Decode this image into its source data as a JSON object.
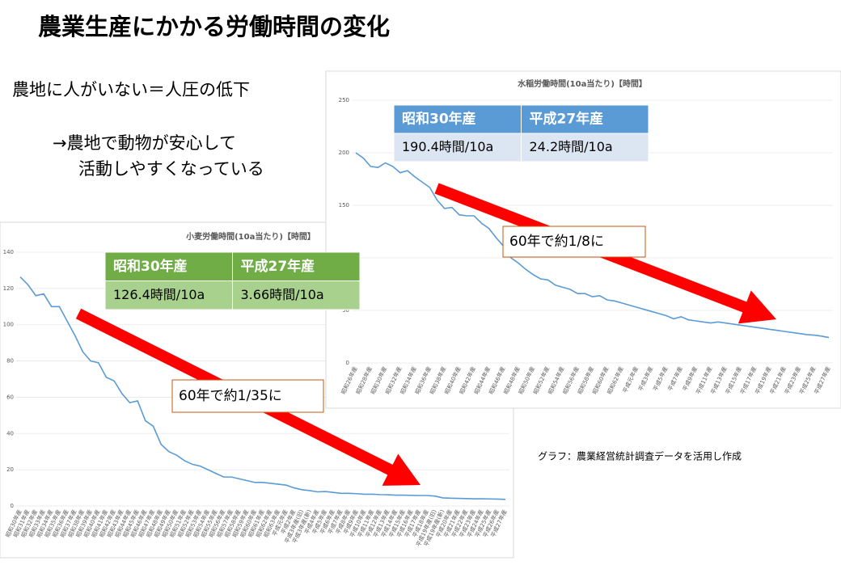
{
  "title": "農業生産にかかる労働時間の変化",
  "text_lines": [
    "農地に人がいない＝人圧の低下",
    "→農地で動物が安心して",
    "活動しやすくなっている"
  ],
  "note": "グラフ：農業経営統計調査データを活用し作成",
  "chart_data": [
    {
      "type": "line",
      "title": "小麦労働時間(10a当たり)【時間】",
      "color": "#5b9bd5",
      "grid": true,
      "ylim": [
        0,
        140
      ],
      "yticks": [
        0,
        20,
        40,
        60,
        80,
        100,
        120,
        140
      ],
      "categories": [
        "昭和30年産",
        "昭和31年産",
        "昭和32年産",
        "昭和33年産",
        "昭和34年産",
        "昭和35年産",
        "昭和36年産",
        "昭和37年産",
        "昭和38年産",
        "昭和39年産",
        "昭和40年産",
        "昭和41年産",
        "昭和42年産",
        "昭和43年産",
        "昭和44年産",
        "昭和45年産",
        "昭和46年産",
        "昭和47年産",
        "昭和48年産",
        "昭和49年産",
        "昭和50年産",
        "昭和51年産",
        "昭和52年産",
        "昭和53年産",
        "昭和54年産",
        "昭和55年産",
        "昭和56年産",
        "昭和57年産",
        "昭和58年産",
        "昭和59年産",
        "昭和60年産",
        "昭和61年産",
        "昭和62年産",
        "昭和63年産",
        "平成元年産",
        "平成2年産",
        "平成3年産(旧)",
        "平成3年産(新)",
        "平成4年産",
        "平成5年産",
        "平成6年産",
        "平成7年産",
        "平成8年産",
        "平成9年産",
        "平成10年産",
        "平成11年産",
        "平成12年産",
        "平成13年産",
        "平成14年産",
        "平成15年産",
        "平成16年産",
        "平成17年産",
        "平成18年産",
        "平成19年産(旧)",
        "平成19年産(新)",
        "平成20年産",
        "平成21年産",
        "平成22年産",
        "平成23年産",
        "平成24年産",
        "平成25年産",
        "平成26年産",
        "平成27年産"
      ],
      "values": [
        126.4,
        122,
        116,
        117,
        110,
        110,
        102,
        94,
        85,
        80,
        79,
        71,
        69,
        62,
        57,
        58,
        47,
        44,
        34,
        30,
        28,
        25,
        23,
        22,
        20,
        18,
        16,
        16,
        15,
        14,
        13,
        13,
        12.5,
        12,
        11.5,
        10,
        9,
        8.5,
        7.8,
        8,
        7.5,
        7,
        7,
        6.8,
        6.5,
        6.5,
        6.3,
        6.2,
        6,
        6,
        5.9,
        5.8,
        5.8,
        5.5,
        4.5,
        4.3,
        4.2,
        4.1,
        4,
        4,
        3.9,
        3.8,
        3.66
      ],
      "table": {
        "header": [
          "昭和30年産",
          "平成27年産"
        ],
        "row": [
          "126.4時間/10a",
          "3.66時間/10a"
        ]
      },
      "annotation": "60年で約1/35に"
    },
    {
      "type": "line",
      "title": "水稲労働時間(10a当たり)【時間】",
      "color": "#5b9bd5",
      "grid": true,
      "ylim": [
        0,
        250
      ],
      "yticks": [
        0,
        50,
        100,
        150,
        200,
        250
      ],
      "categories": [
        "昭和26年産",
        null,
        "昭和28年産",
        null,
        "昭和30年産",
        null,
        "昭和32年産",
        null,
        "昭和34年産",
        null,
        "昭和36年産",
        null,
        "昭和38年産",
        null,
        "昭和40年産",
        null,
        "昭和42年産",
        null,
        "昭和44年産",
        null,
        "昭和46年産",
        null,
        "昭和48年産",
        null,
        "昭和50年産",
        null,
        "昭和52年産",
        null,
        "昭和54年産",
        null,
        "昭和56年産",
        null,
        "昭和58年産",
        null,
        "昭和60年産",
        null,
        "昭和62年産",
        null,
        "平成元年産",
        null,
        "平成3年産",
        null,
        "平成5年産",
        null,
        "平成7年産",
        null,
        "平成9年産",
        null,
        "平成11年産",
        null,
        "平成13年産",
        null,
        "平成15年産",
        null,
        "平成17年産",
        null,
        "平成19年産",
        null,
        "平成21年産",
        null,
        "平成23年産",
        null,
        "平成25年産",
        null,
        "平成27年産"
      ],
      "values": [
        200,
        195,
        187,
        186,
        190.4,
        187,
        181,
        183,
        177,
        172,
        167,
        155,
        147,
        148,
        141,
        140,
        140,
        133,
        128,
        119,
        111,
        100,
        95,
        89,
        84,
        80,
        79,
        74,
        72,
        70,
        66,
        66,
        63,
        64,
        60,
        59,
        57,
        55,
        53,
        51,
        49,
        47,
        45,
        42,
        44,
        41,
        40,
        39,
        38,
        39,
        38,
        37,
        36,
        35,
        34,
        33,
        32,
        31,
        30,
        29,
        28,
        27,
        26.5,
        25.5,
        24.2
      ],
      "table": {
        "header": [
          "昭和30年産",
          "平成27年産"
        ],
        "row": [
          "190.4時間/10a",
          "24.2時間/10a"
        ]
      },
      "annotation": "60年で約1/8に"
    }
  ]
}
